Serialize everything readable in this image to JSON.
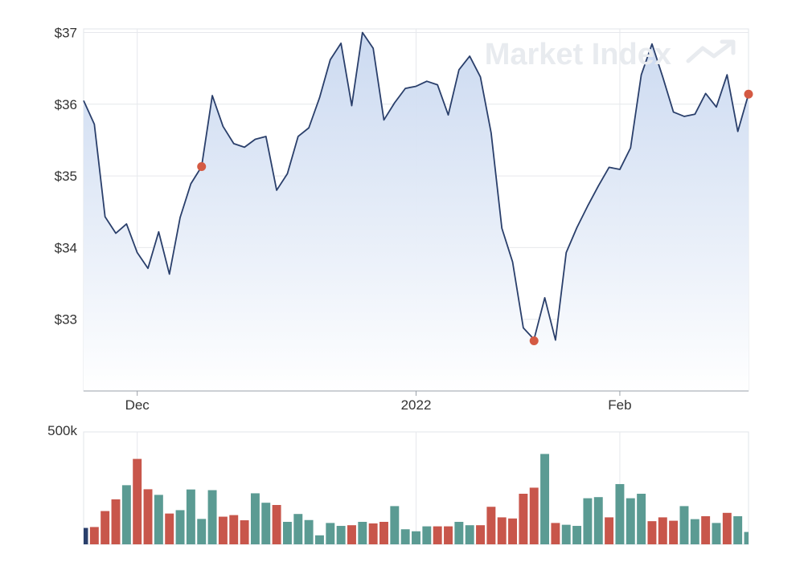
{
  "chart_data": [
    {
      "type": "area",
      "watermark": "Market Index",
      "y_tick_labels": [
        "$37",
        "$36",
        "$35",
        "$34",
        "$33"
      ],
      "y_ticks": [
        37,
        36,
        35,
        34,
        33
      ],
      "ylim": [
        32.0,
        37.05
      ],
      "x_tick_labels": [
        "Dec",
        "2022",
        "Feb"
      ],
      "x_ticks": [
        5,
        31,
        50
      ],
      "xlim": [
        0,
        62
      ],
      "grid": true,
      "colors": {
        "line": "#2a3f6b",
        "fill_top": "#c9d8f0",
        "fill_bottom": "#ffffff",
        "marker": "#d45a43"
      },
      "x": [
        0,
        1,
        2,
        3,
        4,
        5,
        6,
        7,
        8,
        9,
        10,
        11,
        12,
        13,
        14,
        15,
        16,
        17,
        18,
        19,
        20,
        21,
        22,
        23,
        24,
        25,
        26,
        27,
        28,
        29,
        30,
        31,
        32,
        33,
        34,
        35,
        36,
        37,
        38,
        39,
        40,
        41,
        42,
        43,
        44,
        45,
        46,
        47,
        48,
        49,
        50,
        51,
        52,
        53,
        54,
        55,
        56,
        57,
        58,
        59,
        60,
        61,
        62
      ],
      "values": [
        36.05,
        35.72,
        34.43,
        34.2,
        34.33,
        33.93,
        33.71,
        34.22,
        33.63,
        34.42,
        34.89,
        35.13,
        36.12,
        35.69,
        35.45,
        35.4,
        35.51,
        35.55,
        34.8,
        35.03,
        35.55,
        35.67,
        36.09,
        36.62,
        36.85,
        35.98,
        37.0,
        36.78,
        35.78,
        36.02,
        36.22,
        36.25,
        36.32,
        36.27,
        35.85,
        36.48,
        36.67,
        36.38,
        35.6,
        34.27,
        33.8,
        32.88,
        32.72,
        33.3,
        32.71,
        33.93,
        34.28,
        34.58,
        34.86,
        35.12,
        35.09,
        35.39,
        36.41,
        36.84,
        36.38,
        35.89,
        35.83,
        35.86,
        36.15,
        35.96,
        36.41,
        35.62,
        36.14
      ],
      "markers": [
        {
          "x": 11,
          "y": 35.13
        },
        {
          "x": 42,
          "y": 32.7
        },
        {
          "x": 62,
          "y": 36.14
        }
      ]
    },
    {
      "type": "bar",
      "y_tick_labels": [
        "500k"
      ],
      "y_ticks": [
        500000
      ],
      "ylim": [
        0,
        500000
      ],
      "x_ticks": [
        5,
        31,
        50
      ],
      "grid": true,
      "colors": {
        "up": "#5b9b93",
        "down": "#c8564b",
        "first": "#2a3f6b"
      },
      "x": [
        0,
        1,
        2,
        3,
        4,
        5,
        6,
        7,
        8,
        9,
        10,
        11,
        12,
        13,
        14,
        15,
        16,
        17,
        18,
        19,
        20,
        21,
        22,
        23,
        24,
        25,
        26,
        27,
        28,
        29,
        30,
        31,
        32,
        33,
        34,
        35,
        36,
        37,
        38,
        39,
        40,
        41,
        42,
        43,
        44,
        45,
        46,
        47,
        48,
        49,
        50,
        51,
        52,
        53,
        54,
        55,
        56,
        57,
        58,
        59,
        60,
        61,
        62
      ],
      "values": [
        73000,
        77000,
        148000,
        200000,
        263000,
        380000,
        245000,
        220000,
        137000,
        152000,
        244000,
        113000,
        241000,
        123000,
        130000,
        107000,
        227000,
        185000,
        175000,
        100000,
        135000,
        108000,
        40000,
        95000,
        82000,
        85000,
        100000,
        93000,
        100000,
        170000,
        67000,
        58000,
        80000,
        80000,
        80000,
        100000,
        85000,
        85000,
        167000,
        120000,
        115000,
        225000,
        252000,
        402000,
        95000,
        87000,
        82000,
        205000,
        210000,
        120000,
        268000,
        205000,
        225000,
        103000,
        120000,
        105000,
        170000,
        112000,
        125000,
        95000,
        140000,
        125000,
        55000
      ],
      "direction": [
        "first",
        "down",
        "down",
        "down",
        "up",
        "down",
        "down",
        "up",
        "down",
        "up",
        "up",
        "up",
        "up",
        "down",
        "down",
        "down",
        "up",
        "up",
        "down",
        "up",
        "up",
        "up",
        "up",
        "up",
        "up",
        "down",
        "up",
        "down",
        "down",
        "up",
        "up",
        "up",
        "up",
        "down",
        "down",
        "up",
        "up",
        "down",
        "down",
        "down",
        "down",
        "down",
        "down",
        "up",
        "down",
        "up",
        "up",
        "up",
        "up",
        "down",
        "up",
        "up",
        "up",
        "down",
        "down",
        "down",
        "up",
        "up",
        "down",
        "up",
        "down",
        "up",
        "up"
      ]
    }
  ]
}
